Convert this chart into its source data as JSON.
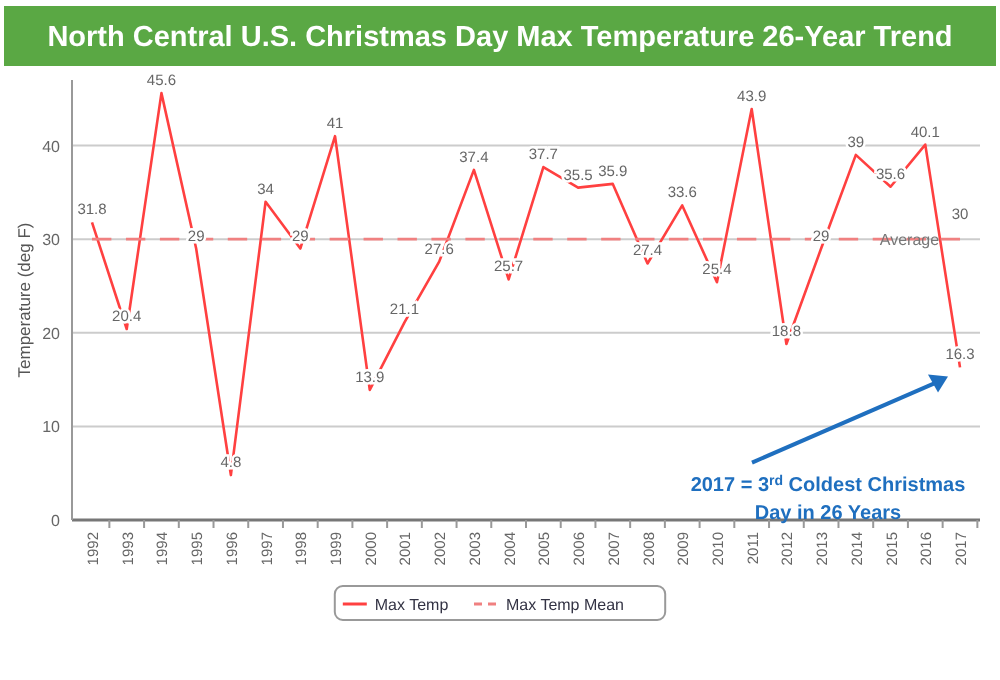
{
  "chart_data": {
    "type": "line",
    "title": "North Central U.S. Christmas Day Max Temperature 26-Year Trend",
    "ylabel": "Temperature (deg F)",
    "categories": [
      "1992",
      "1993",
      "1994",
      "1995",
      "1996",
      "1997",
      "1998",
      "1999",
      "2000",
      "2001",
      "2002",
      "2003",
      "2004",
      "2005",
      "2006",
      "2007",
      "2008",
      "2009",
      "2010",
      "2011",
      "2012",
      "2013",
      "2014",
      "2015",
      "2016",
      "2017"
    ],
    "series": [
      {
        "name": "Max Temp",
        "color": "#ff4040",
        "line_style": "solid",
        "values": [
          31.8,
          20.4,
          45.6,
          29,
          4.8,
          34,
          29,
          41,
          13.9,
          21.1,
          27.6,
          37.4,
          25.7,
          37.7,
          35.5,
          35.9,
          27.4,
          33.6,
          25.4,
          43.9,
          18.8,
          29,
          39,
          35.6,
          40.1,
          16.3
        ]
      },
      {
        "name": "Max Temp Mean",
        "color": "#f08080",
        "line_style": "dashed",
        "values": [
          30,
          30,
          30,
          30,
          30,
          30,
          30,
          30,
          30,
          30,
          30,
          30,
          30,
          30,
          30,
          30,
          30,
          30,
          30,
          30,
          30,
          30,
          30,
          30,
          30,
          30
        ],
        "value_labels": [
          null,
          null,
          null,
          null,
          null,
          null,
          null,
          null,
          null,
          null,
          null,
          null,
          null,
          null,
          null,
          null,
          null,
          null,
          null,
          null,
          null,
          null,
          null,
          null,
          null,
          "30"
        ]
      }
    ],
    "data_labels": true,
    "ylim": [
      0,
      47
    ],
    "yticks": [
      0,
      10,
      20,
      30,
      40
    ],
    "grid": "y",
    "legend": "bottom",
    "marker": "none",
    "annotations": [
      {
        "text": "Average",
        "x": "2014",
        "y": 30
      },
      "2017 = 3$^{rd}$ Coldest Christmas Day in 26 Years"
    ]
  }
}
